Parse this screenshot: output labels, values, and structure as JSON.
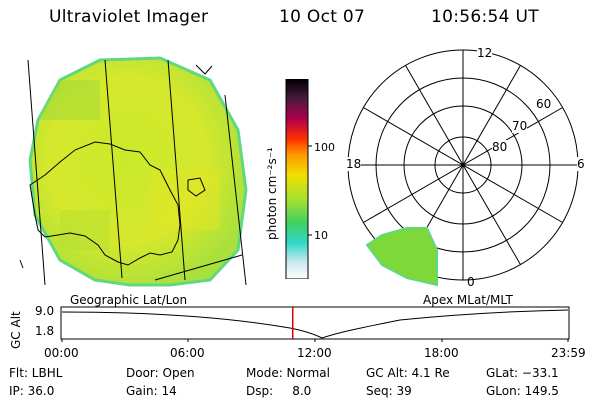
{
  "header": {
    "instrument": "Ultraviolet Imager",
    "date": "10 Oct 07",
    "time": "10:56:54 UT"
  },
  "colorbar": {
    "label": "photon cm⁻²s⁻¹",
    "tick_100": "100",
    "tick_10": "10"
  },
  "polar_plot": {
    "mlt_labels": {
      "top": "12",
      "left": "18",
      "right": "6",
      "bottom": "0"
    },
    "lat_labels": [
      "60",
      "70",
      "80"
    ]
  },
  "timeline": {
    "left_label": "Geographic Lat/Lon",
    "right_label": "Apex MLat/MLT",
    "axis_title": "GC Alt",
    "y_ticks": [
      "9.0",
      "1.8"
    ],
    "x_ticks": [
      "00:00",
      "06:00",
      "12:00",
      "18:00",
      "23:59"
    ],
    "current_time_fraction": 0.456,
    "marker_color": "#e00000"
  },
  "status": {
    "row1": {
      "flt": "Flt: LBHL",
      "door": "Door: Open",
      "mode": "Mode: Normal",
      "gc_alt": "GC Alt: 4.1 Re",
      "glat": "GLat: −33.1"
    },
    "row2": {
      "ip": "IP: 36.0",
      "gain": "Gain: 14",
      "dsp": "Dsp:     8.0",
      "seq": "Seq: 39",
      "glon": "GLon: 149.5"
    }
  },
  "icons": {
    "image": "uv-earth-image",
    "polar": "polar-grid"
  }
}
